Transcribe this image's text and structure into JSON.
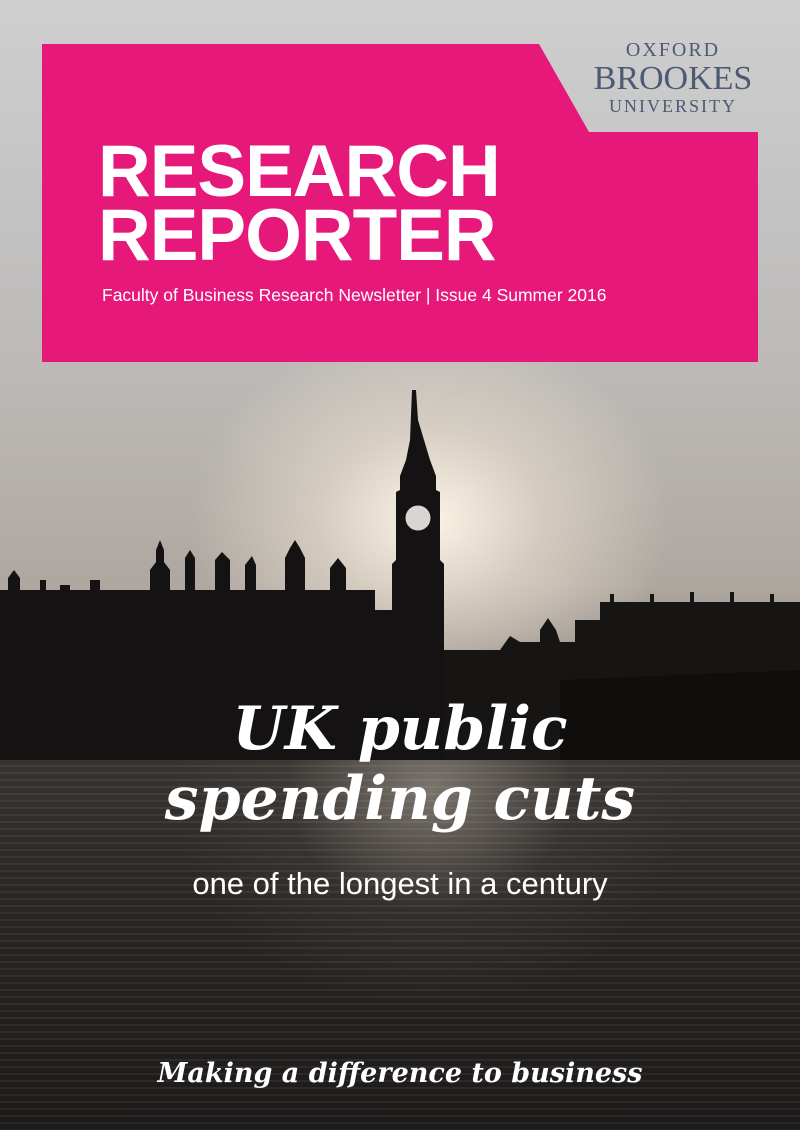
{
  "masthead": {
    "title_line1": "RESEARCH",
    "title_line2": "REPORTER",
    "subline": "Faculty of Business Research Newsletter | Issue 4 Summer 2016",
    "color": "#e6197a"
  },
  "logo": {
    "line1": "OXFORD",
    "line2": "BROOKES",
    "line3": "UNIVERSITY",
    "color": "#4d5a73"
  },
  "cover": {
    "headline_line1": "UK public",
    "headline_line2": "spending cuts",
    "subhead": "one of the longest in a century",
    "tagline": "Making a difference to business"
  }
}
